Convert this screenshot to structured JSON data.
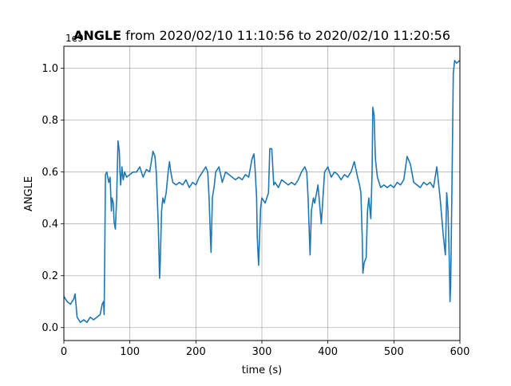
{
  "chart_data": {
    "type": "line",
    "title_bold": "ANGLE",
    "title_rest": " from 2020/02/10 11:10:56 to 2020/02/10 11:20:56",
    "xlabel": "time (s)",
    "ylabel": "ANGLE",
    "offset_label": "1e9",
    "xlim": [
      0,
      600
    ],
    "ylim": [
      -0.05,
      1.085
    ],
    "xticks": [
      0,
      100,
      200,
      300,
      400,
      500,
      600
    ],
    "xtick_labels": [
      "0",
      "100",
      "200",
      "300",
      "400",
      "500",
      "600"
    ],
    "yticks": [
      0.0,
      0.2,
      0.4,
      0.6,
      0.8,
      1.0
    ],
    "ytick_labels": [
      "0.0",
      "0.2",
      "0.4",
      "0.6",
      "0.8",
      "1.0"
    ],
    "grid": true,
    "series": [
      {
        "color": "#1f77b4",
        "x": [
          0,
          5,
          10,
          15,
          17,
          20,
          25,
          30,
          35,
          40,
          45,
          50,
          55,
          58,
          60,
          61,
          62,
          63,
          65,
          68,
          70,
          72,
          73,
          75,
          76,
          78,
          80,
          82,
          84,
          85,
          86,
          88,
          89,
          90,
          92,
          95,
          100,
          105,
          110,
          115,
          120,
          125,
          130,
          135,
          138,
          140,
          143,
          145,
          146,
          148,
          150,
          152,
          155,
          158,
          160,
          162,
          165,
          170,
          175,
          180,
          185,
          190,
          195,
          200,
          205,
          210,
          215,
          218,
          220,
          222,
          223,
          225,
          228,
          230,
          235,
          240,
          245,
          250,
          255,
          260,
          265,
          270,
          275,
          280,
          285,
          288,
          290,
          292,
          293,
          295,
          298,
          300,
          305,
          310,
          312,
          315,
          318,
          320,
          325,
          330,
          335,
          340,
          345,
          350,
          355,
          360,
          365,
          368,
          370,
          372,
          373,
          375,
          378,
          380,
          385,
          390,
          395,
          400,
          405,
          410,
          415,
          420,
          425,
          430,
          435,
          440,
          445,
          448,
          450,
          452,
          453,
          455,
          458,
          460,
          462,
          465,
          467,
          468,
          470,
          472,
          475,
          480,
          485,
          490,
          495,
          500,
          505,
          510,
          515,
          520,
          525,
          530,
          535,
          540,
          545,
          550,
          555,
          560,
          565,
          570,
          575,
          578,
          580,
          582,
          584,
          585,
          586,
          588,
          590,
          592,
          595,
          600
        ],
        "y": [
          0.12,
          0.1,
          0.09,
          0.11,
          0.13,
          0.04,
          0.02,
          0.03,
          0.02,
          0.04,
          0.03,
          0.04,
          0.05,
          0.09,
          0.1,
          0.05,
          0.3,
          0.59,
          0.6,
          0.56,
          0.58,
          0.45,
          0.5,
          0.48,
          0.41,
          0.38,
          0.5,
          0.72,
          0.68,
          0.6,
          0.55,
          0.62,
          0.59,
          0.57,
          0.6,
          0.58,
          0.59,
          0.6,
          0.6,
          0.62,
          0.58,
          0.61,
          0.6,
          0.68,
          0.66,
          0.6,
          0.4,
          0.19,
          0.25,
          0.45,
          0.5,
          0.48,
          0.52,
          0.6,
          0.64,
          0.6,
          0.56,
          0.55,
          0.56,
          0.55,
          0.57,
          0.54,
          0.56,
          0.55,
          0.58,
          0.6,
          0.62,
          0.6,
          0.5,
          0.35,
          0.29,
          0.5,
          0.55,
          0.6,
          0.62,
          0.56,
          0.6,
          0.59,
          0.58,
          0.57,
          0.58,
          0.57,
          0.59,
          0.58,
          0.65,
          0.67,
          0.6,
          0.5,
          0.35,
          0.24,
          0.46,
          0.5,
          0.48,
          0.52,
          0.69,
          0.69,
          0.55,
          0.56,
          0.54,
          0.57,
          0.56,
          0.55,
          0.56,
          0.55,
          0.57,
          0.6,
          0.62,
          0.6,
          0.5,
          0.35,
          0.28,
          0.45,
          0.5,
          0.48,
          0.55,
          0.4,
          0.6,
          0.62,
          0.58,
          0.6,
          0.59,
          0.57,
          0.59,
          0.58,
          0.6,
          0.64,
          0.58,
          0.55,
          0.52,
          0.35,
          0.21,
          0.25,
          0.27,
          0.45,
          0.5,
          0.42,
          0.6,
          0.85,
          0.82,
          0.65,
          0.58,
          0.54,
          0.55,
          0.54,
          0.55,
          0.54,
          0.56,
          0.55,
          0.57,
          0.66,
          0.63,
          0.56,
          0.55,
          0.54,
          0.56,
          0.55,
          0.56,
          0.54,
          0.62,
          0.5,
          0.35,
          0.28,
          0.52,
          0.45,
          0.25,
          0.1,
          0.16,
          0.55,
          0.98,
          1.03,
          1.02,
          1.03
        ]
      }
    ]
  }
}
